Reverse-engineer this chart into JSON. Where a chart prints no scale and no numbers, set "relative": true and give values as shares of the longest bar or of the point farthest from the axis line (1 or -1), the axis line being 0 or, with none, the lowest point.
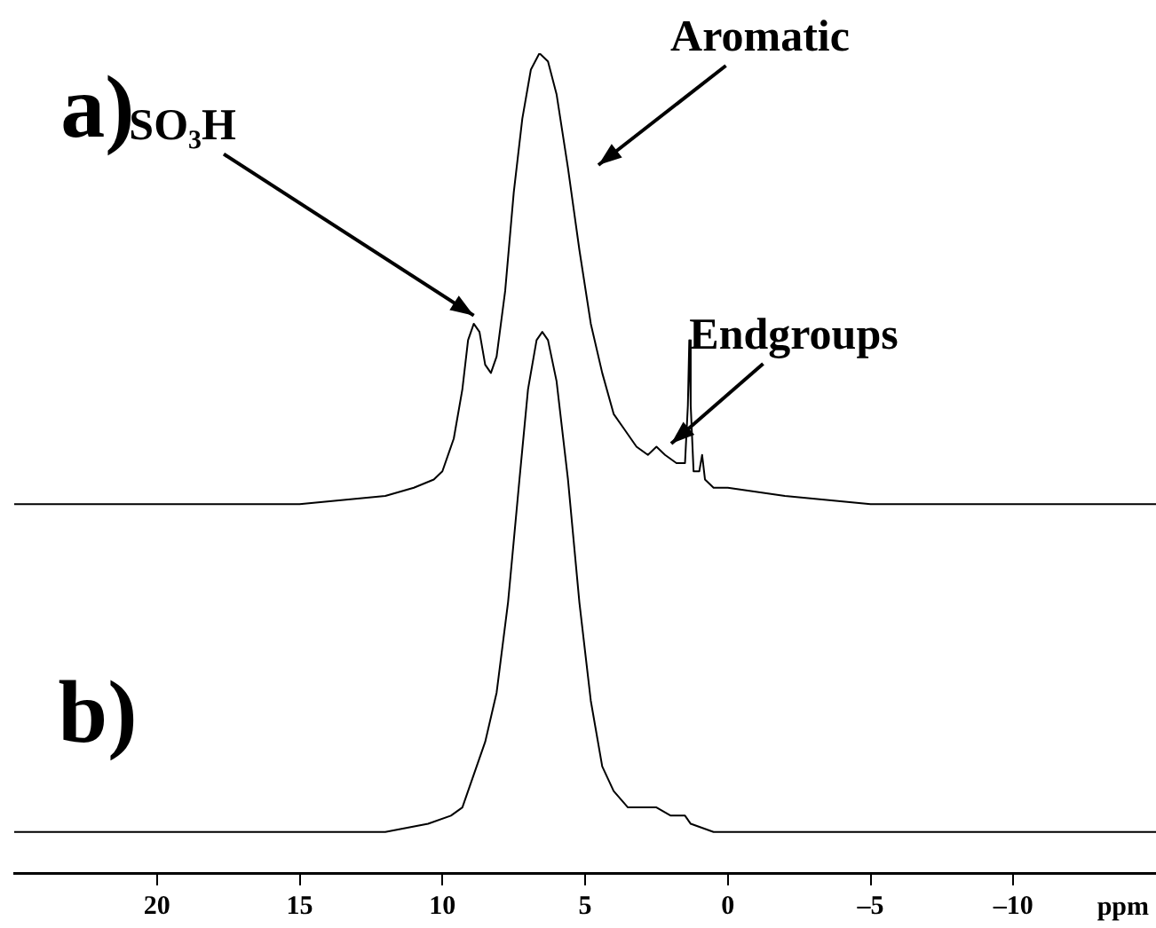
{
  "chart_data": {
    "type": "line",
    "relative": true,
    "xlim": [
      25,
      -15
    ],
    "xlabel": "ppm",
    "xticks": [
      20,
      15,
      10,
      5,
      0,
      {
        "value": -5,
        "label": "–5"
      },
      {
        "value": -10,
        "label": "–10"
      }
    ],
    "series": [
      {
        "color": "#000000",
        "x": [
          25,
          15,
          12,
          11,
          10.3,
          10,
          9.6,
          9.3,
          9.1,
          8.9,
          8.7,
          8.5,
          8.3,
          8.1,
          7.8,
          7.5,
          7.2,
          6.9,
          6.6,
          6.3,
          6.0,
          5.6,
          5.2,
          4.8,
          4.4,
          4.0,
          3.6,
          3.2,
          2.8,
          2.5,
          2.2,
          1.8,
          1.5,
          1.4,
          1.35,
          1.3,
          1.2,
          1.0,
          0.9,
          0.8,
          0.5,
          0,
          -2,
          -5,
          -15
        ],
        "values": [
          0.45,
          0.45,
          0.46,
          0.47,
          0.48,
          0.49,
          0.53,
          0.59,
          0.65,
          0.67,
          0.66,
          0.62,
          0.61,
          0.63,
          0.71,
          0.83,
          0.92,
          0.98,
          1,
          0.99,
          0.95,
          0.86,
          0.76,
          0.67,
          0.61,
          0.56,
          0.54,
          0.52,
          0.51,
          0.52,
          0.51,
          0.5,
          0.5,
          0.57,
          0.65,
          0.57,
          0.49,
          0.49,
          0.51,
          0.48,
          0.47,
          0.47,
          0.46,
          0.45,
          0.45
        ]
      },
      {
        "color": "#000000",
        "x": [
          25,
          15,
          12,
          10.5,
          9.7,
          9.3,
          8.9,
          8.5,
          8.1,
          7.7,
          7.3,
          7.0,
          6.7,
          6.5,
          6.3,
          6.0,
          5.6,
          5.2,
          4.8,
          4.4,
          4.0,
          3.5,
          3.0,
          2.5,
          2.0,
          1.5,
          1.3,
          0.5,
          -2,
          -15
        ],
        "values": [
          0.05,
          0.05,
          0.05,
          0.06,
          0.07,
          0.08,
          0.12,
          0.16,
          0.22,
          0.33,
          0.48,
          0.59,
          0.65,
          0.66,
          0.65,
          0.6,
          0.48,
          0.33,
          0.21,
          0.13,
          0.1,
          0.08,
          0.08,
          0.08,
          0.07,
          0.07,
          0.06,
          0.05,
          0.05,
          0.05
        ]
      }
    ],
    "annotations": [
      "a)",
      {
        "text": "SO₃H",
        "x": 8.9,
        "y": 0.68
      },
      "Aromatic",
      "Endgroups",
      "b)"
    ]
  }
}
